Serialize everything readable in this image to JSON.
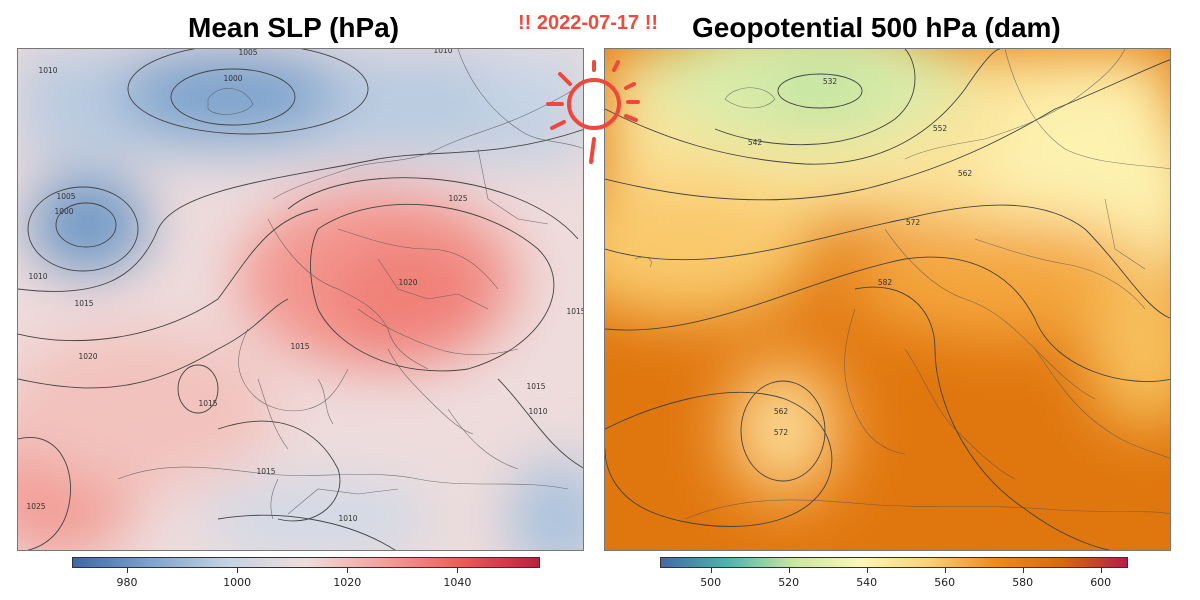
{
  "date_badge": "!! 2022-07-17 !!",
  "panels": [
    {
      "title": "Mean SLP (hPa)",
      "colorbar": {
        "ticks": [
          "980",
          "1000",
          "1020",
          "1040"
        ],
        "min": 970,
        "max": 1055,
        "colors": [
          "#3d67a8",
          "#7ea3cc",
          "#c4d3e3",
          "#f0dcdc",
          "#f4a09a",
          "#ee5b57",
          "#b8213f"
        ]
      },
      "contour_labels": [
        "1005",
        "1000",
        "1010",
        "1010",
        "1005",
        "1000",
        "1010",
        "1015",
        "1020",
        "1025",
        "1020",
        "1015",
        "1015",
        "1015",
        "1015",
        "1010",
        "1025",
        "1015",
        "1010"
      ]
    },
    {
      "title": "Geopotential 500 hPa (dam)",
      "colorbar": {
        "ticks": [
          "500",
          "520",
          "540",
          "560",
          "580",
          "600"
        ],
        "min": 487,
        "max": 607,
        "colors": [
          "#4469a8",
          "#4fb3ad",
          "#c8e8a0",
          "#fcf7b8",
          "#fbd276",
          "#f08c1e",
          "#d96b08",
          "#b71d48"
        ]
      },
      "contour_labels": [
        "532",
        "542",
        "552",
        "562",
        "572",
        "582",
        "562",
        "572"
      ]
    }
  ]
}
